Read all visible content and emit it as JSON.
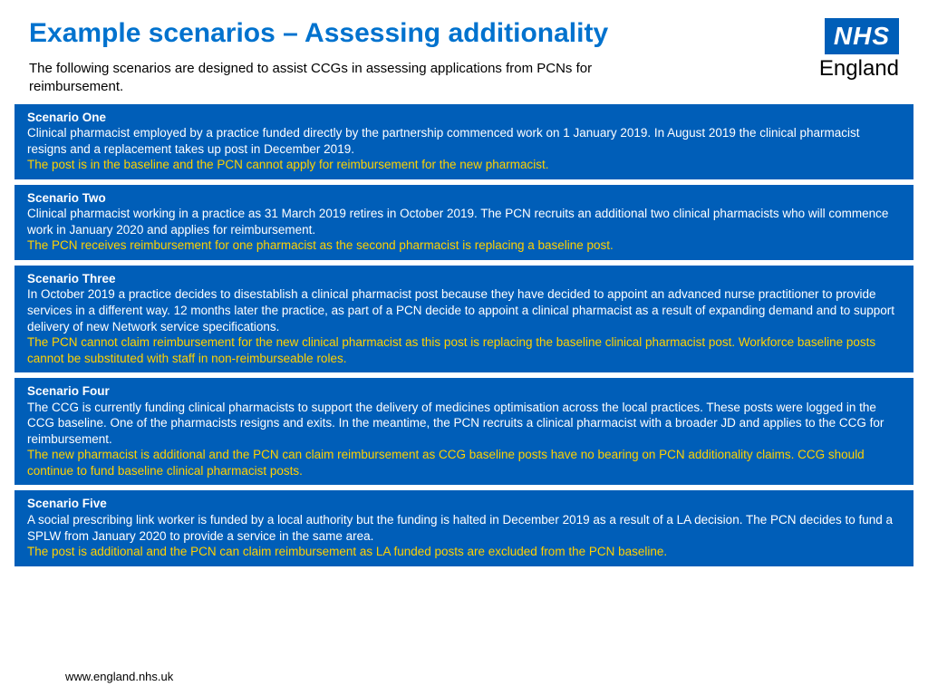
{
  "header": {
    "title": "Example scenarios – Assessing additionality",
    "intro": "The following scenarios are designed to assist CCGs in assessing applications from PCNs for reimbursement.",
    "logo_top": "NHS",
    "logo_bottom": "England"
  },
  "scenarios": [
    {
      "title": "Scenario One",
      "body": "Clinical pharmacist employed by a practice funded directly by the partnership commenced work on 1 January 2019. In August 2019 the clinical pharmacist resigns and a replacement takes up post in December 2019.",
      "outcome": "The post is in the baseline and the PCN cannot apply for reimbursement for the new pharmacist."
    },
    {
      "title": "Scenario Two",
      "body": "Clinical pharmacist working in a practice as 31 March 2019 retires in October 2019. The PCN recruits an additional two clinical pharmacists who will commence work in January 2020 and applies for reimbursement.",
      "outcome": "The PCN receives reimbursement for one pharmacist as the second pharmacist is replacing a baseline post."
    },
    {
      "title": "Scenario Three",
      "body": "In October 2019 a practice decides to disestablish a clinical pharmacist post because they have decided to appoint an advanced nurse practitioner to provide services in a different way. 12 months later the practice, as part of a PCN decide to appoint a clinical pharmacist as a result of expanding demand and to support delivery of new Network service specifications.",
      "outcome": "The PCN cannot claim reimbursement for the new clinical pharmacist as this post is replacing the baseline clinical pharmacist post. Workforce baseline posts cannot be substituted with staff in non-reimburseable roles."
    },
    {
      "title": "Scenario Four",
      "body": "The CCG is currently funding clinical pharmacists to support the delivery of medicines optimisation across the local practices. These posts were logged in the CCG baseline. One of the pharmacists resigns and exits. In the meantime, the PCN recruits a clinical pharmacist with a broader JD and applies to the CCG for reimbursement.",
      "outcome": "The new pharmacist is additional and the PCN can claim reimbursement as CCG baseline posts have no bearing on PCN additionality claims. CCG should continue to fund baseline clinical pharmacist posts."
    },
    {
      "title": "Scenario Five",
      "body": "A social prescribing link worker is funded by a local authority but the funding is halted in December 2019 as a result of a LA decision. The PCN decides to fund a SPLW from January 2020 to provide a service in the same area.",
      "outcome": "The post is additional and the PCN can claim reimbursement as LA funded posts are excluded from the PCN baseline."
    }
  ],
  "footer": {
    "url": "www.england.nhs.uk"
  },
  "colors": {
    "brand_blue": "#005eb8",
    "title_blue": "#0072ce",
    "highlight_yellow": "#ffd100",
    "background": "#ffffff"
  }
}
